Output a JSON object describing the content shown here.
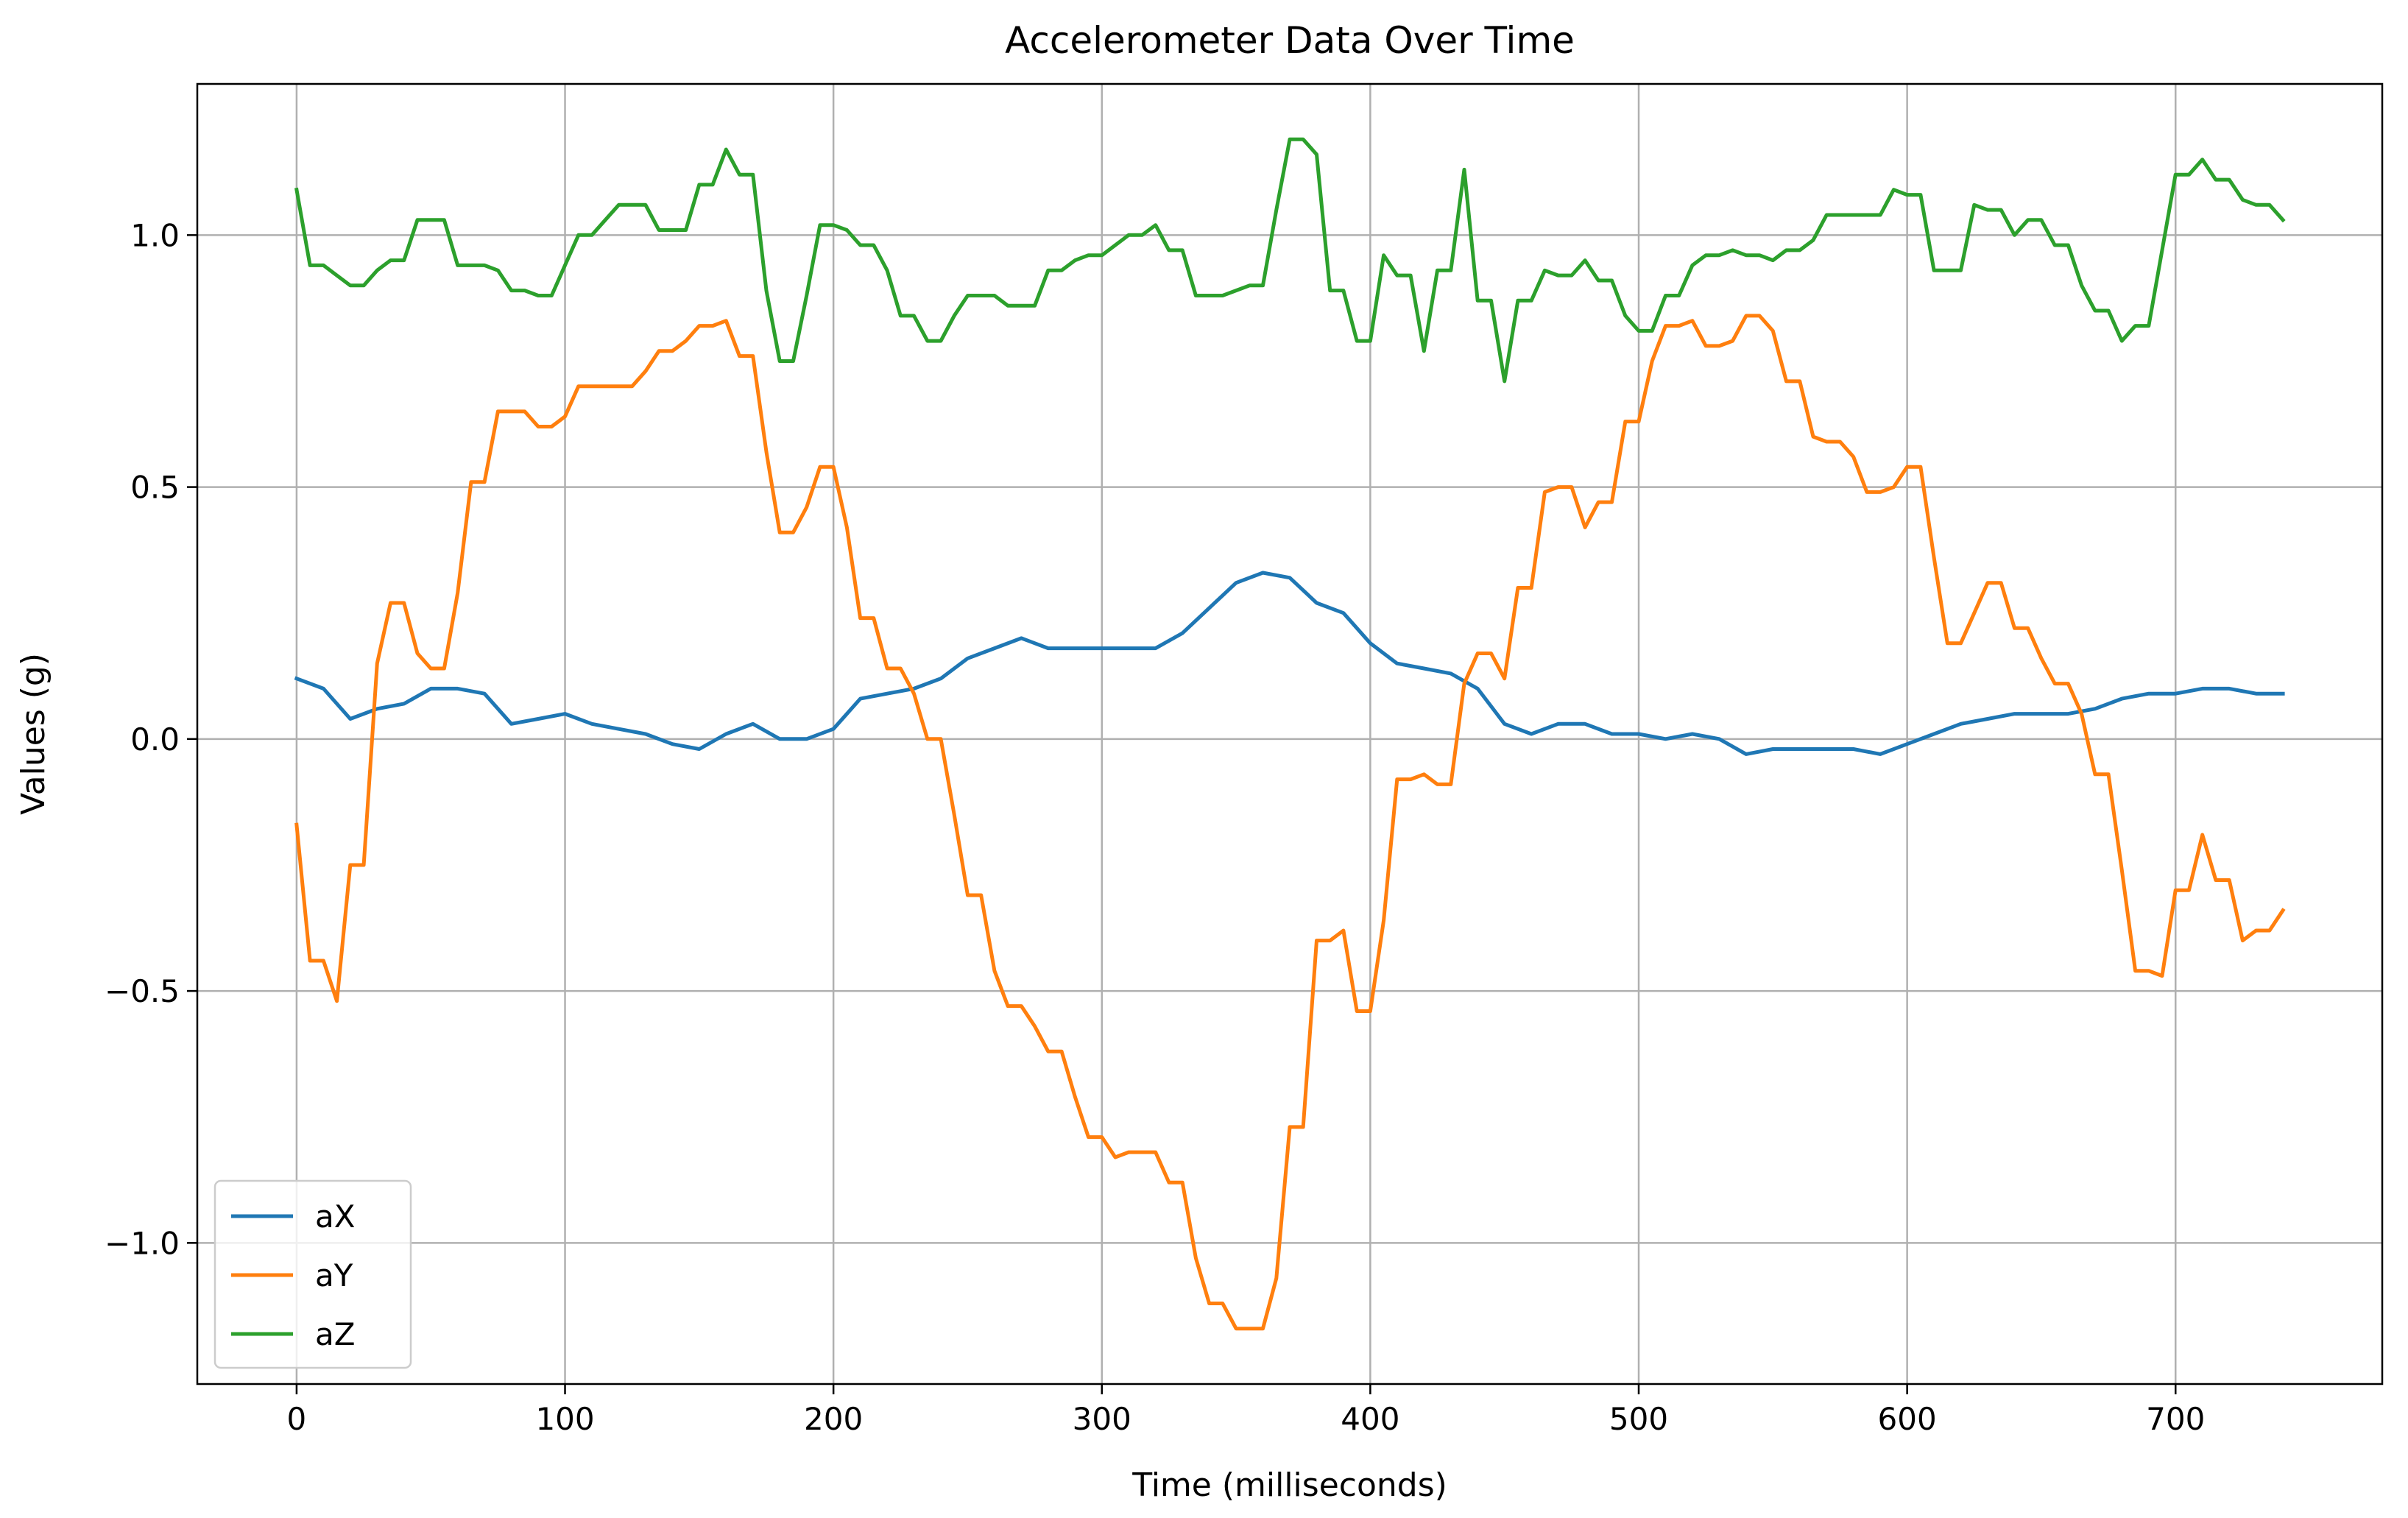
{
  "chart_data": {
    "type": "line",
    "title": "Accelerometer Data Over Time",
    "xlabel": "Time (milliseconds)",
    "ylabel": "Values (g)",
    "xlim": [
      -37,
      777
    ],
    "ylim": [
      -1.28,
      1.3
    ],
    "xticks": [
      0,
      100,
      200,
      300,
      400,
      500,
      600,
      700
    ],
    "xtick_labels": [
      "0",
      "100",
      "200",
      "300",
      "400",
      "500",
      "600",
      "700"
    ],
    "yticks": [
      -1.0,
      -0.5,
      0.0,
      0.5,
      1.0
    ],
    "ytick_labels": [
      "−1.0",
      "−0.5",
      "0.0",
      "0.5",
      "1.0"
    ],
    "grid": true,
    "legend_position": "lower-left",
    "series": [
      {
        "name": "aX",
        "color": "#1f77b4",
        "x": [
          0,
          10,
          20,
          30,
          40,
          50,
          60,
          70,
          80,
          90,
          100,
          110,
          120,
          130,
          140,
          150,
          160,
          170,
          180,
          190,
          200,
          210,
          220,
          230,
          240,
          250,
          260,
          270,
          280,
          290,
          300,
          310,
          320,
          330,
          340,
          350,
          360,
          370,
          380,
          390,
          400,
          410,
          420,
          430,
          440,
          450,
          460,
          470,
          480,
          490,
          500,
          510,
          520,
          530,
          540,
          550,
          560,
          570,
          580,
          590,
          600,
          610,
          620,
          630,
          640,
          650,
          660,
          670,
          680,
          690,
          700,
          710,
          720,
          730,
          740
        ],
        "y": [
          0.12,
          0.1,
          0.04,
          0.06,
          0.07,
          0.1,
          0.1,
          0.09,
          0.03,
          0.04,
          0.05,
          0.03,
          0.02,
          0.01,
          -0.01,
          -0.02,
          0.01,
          0.03,
          0.0,
          0.0,
          0.02,
          0.08,
          0.09,
          0.1,
          0.12,
          0.16,
          0.18,
          0.2,
          0.18,
          0.18,
          0.18,
          0.18,
          0.18,
          0.21,
          0.26,
          0.31,
          0.33,
          0.32,
          0.27,
          0.25,
          0.19,
          0.15,
          0.14,
          0.13,
          0.1,
          0.03,
          0.01,
          0.03,
          0.03,
          0.01,
          0.01,
          0.0,
          0.01,
          0.0,
          -0.03,
          -0.02,
          -0.02,
          -0.02,
          -0.02,
          -0.03,
          -0.01,
          0.01,
          0.03,
          0.04,
          0.05,
          0.05,
          0.05,
          0.06,
          0.08,
          0.09,
          0.09,
          0.1,
          0.1,
          0.09,
          0.09
        ]
      },
      {
        "name": "aY",
        "color": "#ff7f0e",
        "x": [
          0,
          5,
          10,
          15,
          20,
          25,
          30,
          35,
          40,
          45,
          50,
          55,
          60,
          65,
          70,
          75,
          80,
          85,
          90,
          95,
          100,
          105,
          110,
          115,
          120,
          125,
          130,
          135,
          140,
          145,
          150,
          155,
          160,
          165,
          170,
          175,
          180,
          185,
          190,
          195,
          200,
          205,
          210,
          215,
          220,
          225,
          230,
          235,
          240,
          245,
          250,
          255,
          260,
          265,
          270,
          275,
          280,
          285,
          290,
          295,
          300,
          305,
          310,
          315,
          320,
          325,
          330,
          335,
          340,
          345,
          350,
          355,
          360,
          365,
          370,
          375,
          380,
          385,
          390,
          395,
          400,
          405,
          410,
          415,
          420,
          425,
          430,
          435,
          440,
          445,
          450,
          455,
          460,
          465,
          470,
          475,
          480,
          485,
          490,
          495,
          500,
          505,
          510,
          515,
          520,
          525,
          530,
          535,
          540,
          545,
          550,
          555,
          560,
          565,
          570,
          575,
          580,
          585,
          590,
          595,
          600,
          605,
          610,
          615,
          620,
          625,
          630,
          635,
          640,
          645,
          650,
          655,
          660,
          665,
          670,
          675,
          680,
          685,
          690,
          695,
          700,
          705,
          710,
          715,
          720,
          725,
          730,
          735,
          740
        ],
        "y": [
          -0.17,
          -0.44,
          -0.44,
          -0.52,
          -0.25,
          -0.25,
          0.15,
          0.27,
          0.27,
          0.17,
          0.14,
          0.14,
          0.29,
          0.51,
          0.51,
          0.65,
          0.65,
          0.65,
          0.62,
          0.62,
          0.64,
          0.7,
          0.7,
          0.7,
          0.7,
          0.7,
          0.73,
          0.77,
          0.77,
          0.79,
          0.82,
          0.82,
          0.83,
          0.76,
          0.76,
          0.57,
          0.41,
          0.41,
          0.46,
          0.54,
          0.54,
          0.42,
          0.24,
          0.24,
          0.14,
          0.14,
          0.09,
          0.0,
          0.0,
          -0.15,
          -0.31,
          -0.31,
          -0.46,
          -0.53,
          -0.53,
          -0.57,
          -0.62,
          -0.62,
          -0.71,
          -0.79,
          -0.79,
          -0.83,
          -0.82,
          -0.82,
          -0.82,
          -0.88,
          -0.88,
          -1.03,
          -1.12,
          -1.12,
          -1.17,
          -1.17,
          -1.17,
          -1.07,
          -0.77,
          -0.77,
          -0.4,
          -0.4,
          -0.38,
          -0.54,
          -0.54,
          -0.36,
          -0.08,
          -0.08,
          -0.07,
          -0.09,
          -0.09,
          0.11,
          0.17,
          0.17,
          0.12,
          0.3,
          0.3,
          0.49,
          0.5,
          0.5,
          0.42,
          0.47,
          0.47,
          0.63,
          0.63,
          0.75,
          0.82,
          0.82,
          0.83,
          0.78,
          0.78,
          0.79,
          0.84,
          0.84,
          0.81,
          0.71,
          0.71,
          0.6,
          0.59,
          0.59,
          0.56,
          0.49,
          0.49,
          0.5,
          0.54,
          0.54,
          0.36,
          0.19,
          0.19,
          0.25,
          0.31,
          0.31,
          0.22,
          0.22,
          0.16,
          0.11,
          0.11,
          0.05,
          -0.07,
          -0.07,
          -0.26,
          -0.46,
          -0.46,
          -0.47,
          -0.3,
          -0.3,
          -0.19,
          -0.28,
          -0.28,
          -0.4,
          -0.38,
          -0.38,
          -0.34
        ]
      },
      {
        "name": "aZ",
        "color": "#2ca02c",
        "x": [
          0,
          5,
          10,
          15,
          20,
          25,
          30,
          35,
          40,
          45,
          50,
          55,
          60,
          65,
          70,
          75,
          80,
          85,
          90,
          95,
          100,
          105,
          110,
          115,
          120,
          125,
          130,
          135,
          140,
          145,
          150,
          155,
          160,
          165,
          170,
          175,
          180,
          185,
          190,
          195,
          200,
          205,
          210,
          215,
          220,
          225,
          230,
          235,
          240,
          245,
          250,
          255,
          260,
          265,
          270,
          275,
          280,
          285,
          290,
          295,
          300,
          305,
          310,
          315,
          320,
          325,
          330,
          335,
          340,
          345,
          350,
          355,
          360,
          365,
          370,
          375,
          380,
          385,
          390,
          395,
          400,
          405,
          410,
          415,
          420,
          425,
          430,
          435,
          440,
          445,
          450,
          455,
          460,
          465,
          470,
          475,
          480,
          485,
          490,
          495,
          500,
          505,
          510,
          515,
          520,
          525,
          530,
          535,
          540,
          545,
          550,
          555,
          560,
          565,
          570,
          575,
          580,
          585,
          590,
          595,
          600,
          605,
          610,
          615,
          620,
          625,
          630,
          635,
          640,
          645,
          650,
          655,
          660,
          665,
          670,
          675,
          680,
          685,
          690,
          695,
          700,
          705,
          710,
          715,
          720,
          725,
          730,
          735,
          740
        ],
        "y": [
          1.09,
          0.94,
          0.94,
          0.92,
          0.9,
          0.9,
          0.93,
          0.95,
          0.95,
          1.03,
          1.03,
          1.03,
          0.94,
          0.94,
          0.94,
          0.93,
          0.89,
          0.89,
          0.88,
          0.88,
          0.94,
          1.0,
          1.0,
          1.03,
          1.06,
          1.06,
          1.06,
          1.01,
          1.01,
          1.01,
          1.1,
          1.1,
          1.17,
          1.12,
          1.12,
          0.89,
          0.75,
          0.75,
          0.88,
          1.02,
          1.02,
          1.01,
          0.98,
          0.98,
          0.93,
          0.84,
          0.84,
          0.79,
          0.79,
          0.84,
          0.88,
          0.88,
          0.88,
          0.86,
          0.86,
          0.86,
          0.93,
          0.93,
          0.95,
          0.96,
          0.96,
          0.98,
          1.0,
          1.0,
          1.02,
          0.97,
          0.97,
          0.88,
          0.88,
          0.88,
          0.89,
          0.9,
          0.9,
          1.05,
          1.19,
          1.19,
          1.16,
          0.89,
          0.89,
          0.79,
          0.79,
          0.96,
          0.92,
          0.92,
          0.77,
          0.93,
          0.93,
          1.13,
          0.87,
          0.87,
          0.71,
          0.87,
          0.87,
          0.93,
          0.92,
          0.92,
          0.95,
          0.91,
          0.91,
          0.84,
          0.81,
          0.81,
          0.88,
          0.88,
          0.94,
          0.96,
          0.96,
          0.97,
          0.96,
          0.96,
          0.95,
          0.97,
          0.97,
          0.99,
          1.04,
          1.04,
          1.04,
          1.04,
          1.04,
          1.09,
          1.08,
          1.08,
          0.93,
          0.93,
          0.93,
          1.06,
          1.05,
          1.05,
          1.0,
          1.03,
          1.03,
          0.98,
          0.98,
          0.9,
          0.85,
          0.85,
          0.79,
          0.82,
          0.82,
          0.97,
          1.12,
          1.12,
          1.15,
          1.11,
          1.11,
          1.07,
          1.06,
          1.06,
          1.03
        ]
      }
    ]
  }
}
